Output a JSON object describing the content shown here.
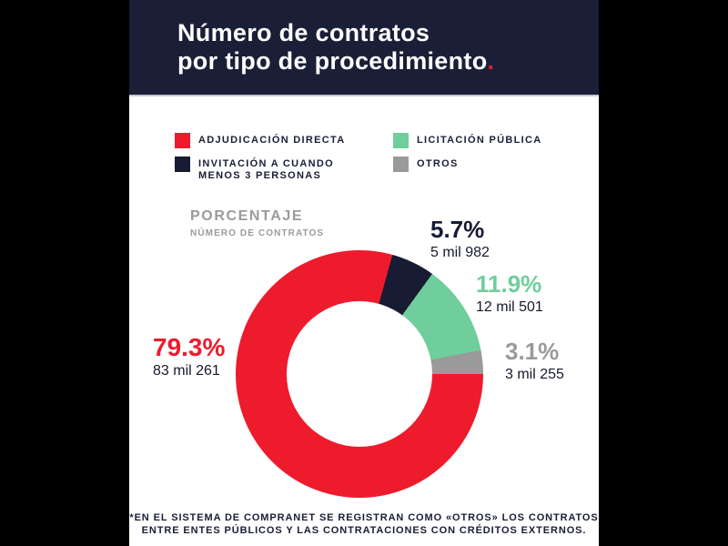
{
  "colors": {
    "background": "#000000",
    "card": "#FFFFFF",
    "header_bg": "#1A1E36",
    "accent_red": "#EE1B2D",
    "muted_text": "#9B9B9B",
    "dark_text": "#16192B"
  },
  "header": {
    "title_line1": "Número de contratos",
    "title_line2": "por tipo de procedimiento",
    "title_period": "."
  },
  "axis_note": {
    "heading": "PORCENTAJE",
    "subheading": "NÚMERO DE CONTRATOS"
  },
  "footnote": {
    "line1": "*EN EL SISTEMA DE COMPRANET SE REGISTRAN COMO «OTROS» LOS CONTRATOS",
    "line2": "ENTRE ENTES PÚBLICOS Y LAS CONTRATACIONES CON CRÉDITOS EXTERNOS."
  },
  "chart_data": {
    "type": "pie",
    "subtype": "donut",
    "title": "Número de contratos por tipo de procedimiento.",
    "legend_position": "top",
    "start_angle_deg": 90,
    "segments": [
      {
        "label": "ADJUDICACIÓN DIRECTA",
        "pct": 79.3,
        "pct_label": "79.3%",
        "value": 83261,
        "value_label": "83 mil 261",
        "color": "#EE1B2D"
      },
      {
        "label": "INVITACIÓN A CUANDO MENOS 3 PERSONAS",
        "pct": 5.7,
        "pct_label": "5.7%",
        "value": 5982,
        "value_label": "5 mil 982",
        "color": "#171B33"
      },
      {
        "label": "LICITACIÓN PÚBLICA",
        "pct": 11.9,
        "pct_label": "11.9%",
        "value": 12501,
        "value_label": "12 mil 501",
        "color": "#6FCE9B"
      },
      {
        "label": "OTROS",
        "pct": 3.1,
        "pct_label": "3.1%",
        "value": 3255,
        "value_label": "3 mil 255",
        "color": "#9A9A9A"
      }
    ]
  }
}
